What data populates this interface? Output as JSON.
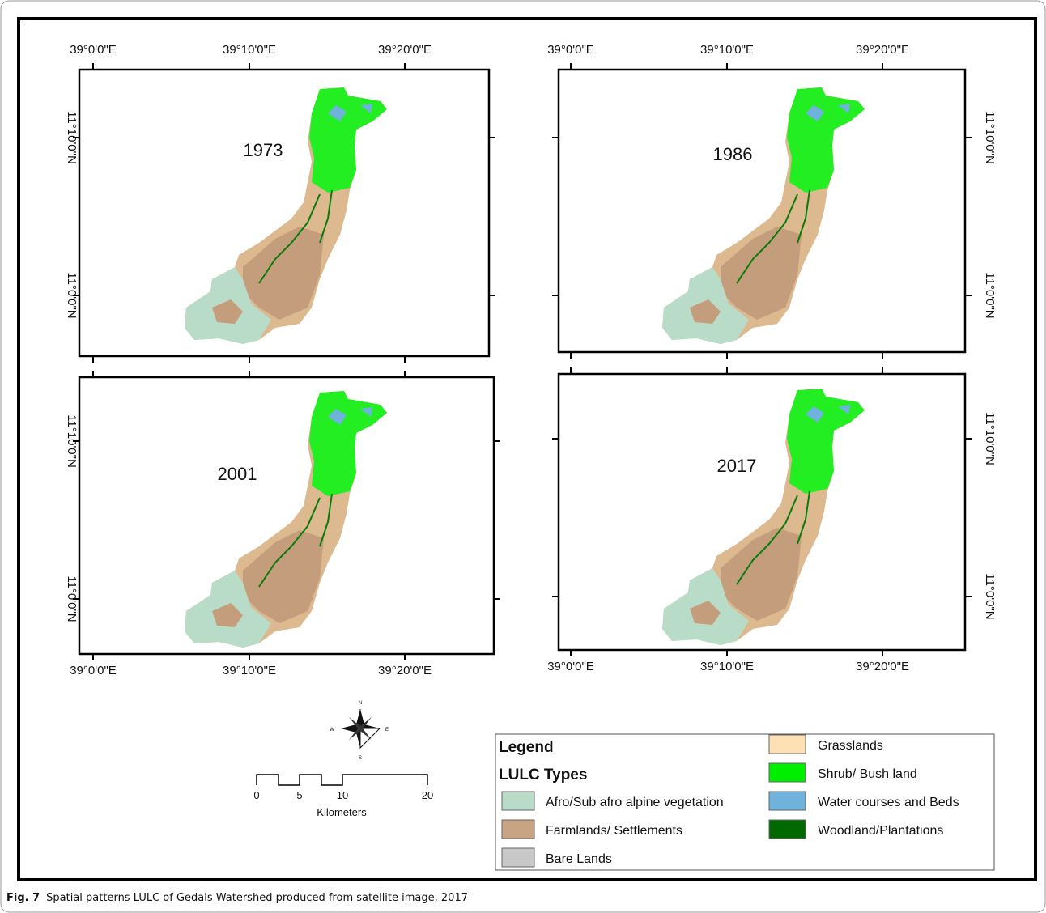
{
  "figure": {
    "panels": [
      {
        "year": "1973",
        "lon_labels": [
          "39°0'0\"E",
          "39°10'0\"E",
          "39°20'0\"E"
        ],
        "lat_labels": [
          "11°10'0\"N",
          "11°0'0\"N"
        ]
      },
      {
        "year": "1986",
        "lon_labels": [
          "39°0'0\"E",
          "39°10'0\"E",
          "39°20'0\"E"
        ],
        "lat_labels": [
          "11°10'0\"N",
          "11°0'0\"N"
        ]
      },
      {
        "year": "2001",
        "lon_labels": [
          "39°0'0\"E",
          "39°10'0\"E",
          "39°20'0\"E"
        ],
        "lat_labels": [
          "11°10'0\"N",
          "11°0'0\"N"
        ]
      },
      {
        "year": "2017",
        "lon_labels": [
          "39°0'0\"E",
          "39°10'0\"E",
          "39°20'0\"E"
        ],
        "lat_labels": [
          "11°10'0\"N",
          "11°0'0\"N"
        ]
      }
    ],
    "compass": {
      "north": "N",
      "south": "S",
      "east": "E",
      "west": "W"
    },
    "scale_bar": {
      "ticks": [
        "0",
        "5",
        "10",
        "20"
      ],
      "unit": "Kilometers"
    },
    "legend": {
      "title": "Legend",
      "subtitle": "LULC Types",
      "items": [
        {
          "label": "Afro/Sub afro alpine vegetation",
          "color": "#b9dcc9"
        },
        {
          "label": "Farmlands/ Settlements",
          "color": "#c8a384"
        },
        {
          "label": "Bare Lands",
          "color": "#c8c8c8"
        },
        {
          "label": "Grasslands",
          "color": "#fde0b4"
        },
        {
          "label": "Shrub/ Bush land",
          "color": "#00ee00"
        },
        {
          "label": "Water courses  and  Beds",
          "color": "#6fb2dc"
        },
        {
          "label": "Woodland/Plantations",
          "color": "#006a00"
        }
      ]
    },
    "caption": {
      "label": "Fig. 7",
      "text": "Spatial patterns LULC of Gedals Watershed produced from satellite image, 2017"
    }
  }
}
